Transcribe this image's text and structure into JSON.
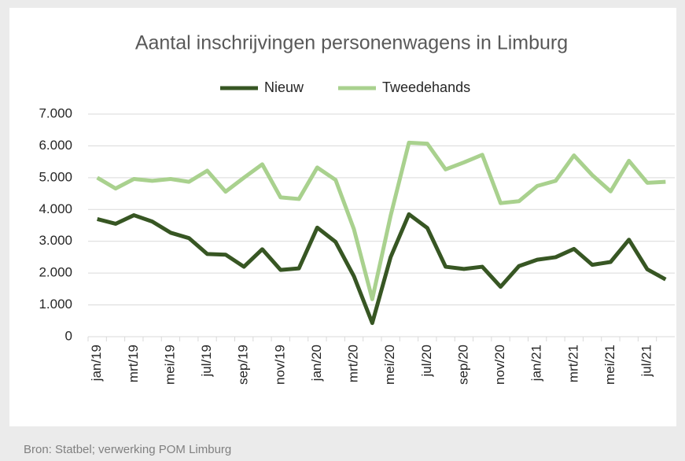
{
  "chart_data": {
    "type": "line",
    "title": "Aantal inschrijvingen personenwagens in Limburg",
    "source": "Bron: Statbel; verwerking POM Limburg",
    "categories": [
      "jan/19",
      null,
      "mrt/19",
      null,
      "mei/19",
      null,
      "jul/19",
      null,
      "sep/19",
      null,
      "nov/19",
      null,
      "jan/20",
      null,
      "mrt/20",
      null,
      "mei/20",
      null,
      "jul/20",
      null,
      "sep/20",
      null,
      "nov/20",
      null,
      "jan/21",
      null,
      "mrt/21",
      null,
      "mei/21",
      null,
      "jul/21",
      null
    ],
    "series": [
      {
        "name": "Nieuw",
        "color": "#375623",
        "values": [
          3700,
          3550,
          3820,
          3620,
          3270,
          3100,
          2600,
          2580,
          2200,
          2750,
          2100,
          2150,
          3430,
          2980,
          1900,
          430,
          2500,
          3850,
          3420,
          2200,
          2130,
          2200,
          1570,
          2220,
          2420,
          2500,
          2760,
          2260,
          2350,
          3050,
          2120,
          1800
        ]
      },
      {
        "name": "Tweedehands",
        "color": "#a9d18e",
        "values": [
          5000,
          4660,
          4960,
          4900,
          4960,
          4870,
          5220,
          4560,
          5000,
          5420,
          4380,
          4330,
          5320,
          4930,
          3380,
          1180,
          3800,
          6100,
          6070,
          5260,
          5480,
          5720,
          4200,
          4260,
          4740,
          4900,
          5700,
          5080,
          4570,
          5530,
          4840,
          4870
        ]
      }
    ],
    "ylim": [
      0,
      7000
    ],
    "yticks": [
      0,
      {
        "value": 1000,
        "label": "1.000"
      },
      {
        "value": 2000,
        "label": "2.000"
      },
      {
        "value": 3000,
        "label": "3.000"
      },
      {
        "value": 4000,
        "label": "4.000"
      },
      {
        "value": 5000,
        "label": "5.000"
      },
      {
        "value": 6000,
        "label": "6.000"
      },
      {
        "value": 7000,
        "label": "7.000"
      }
    ],
    "grid": true,
    "legend": "top"
  }
}
